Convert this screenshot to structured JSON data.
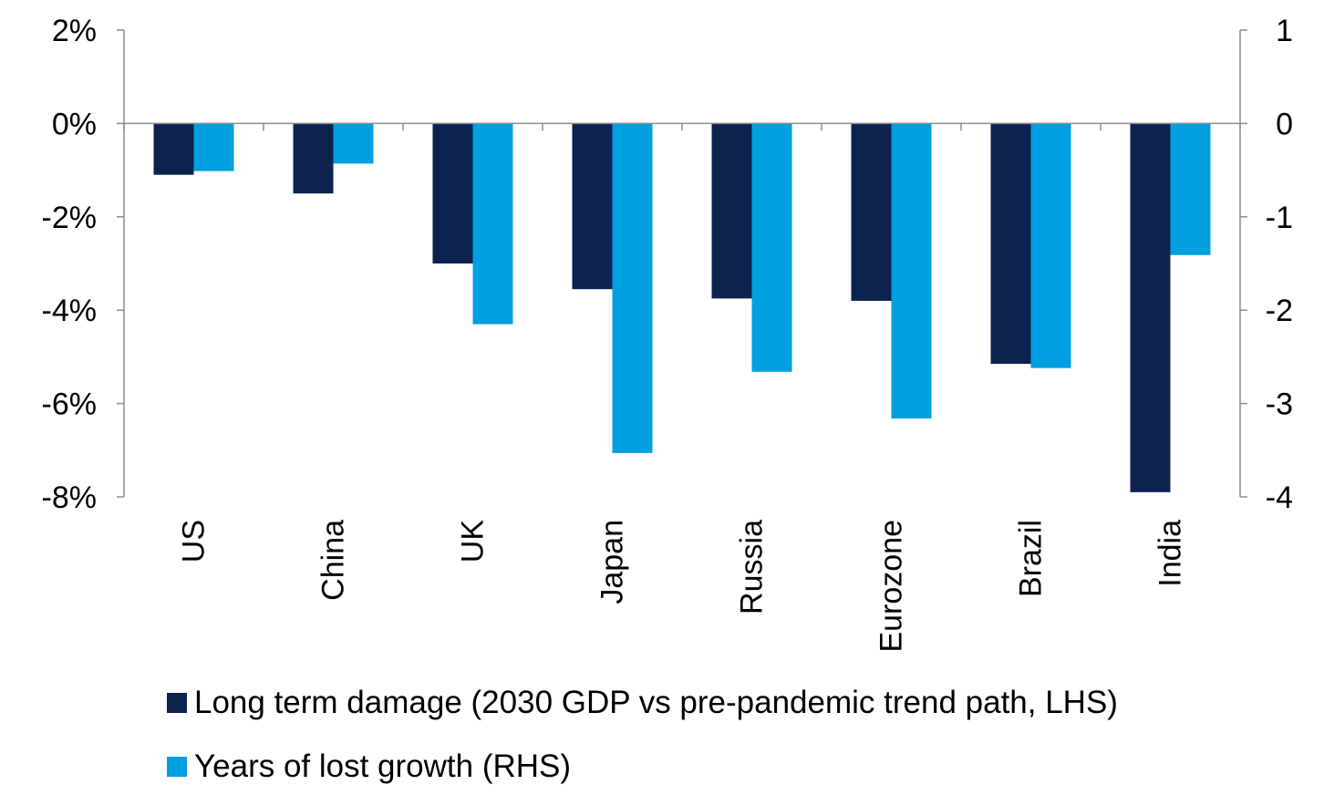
{
  "chart_data": {
    "type": "bar",
    "categories": [
      "US",
      "China",
      "UK",
      "Japan",
      "Russia",
      "Eurozone",
      "Brazil",
      "India"
    ],
    "series": [
      {
        "name": "Long term damage (2030 GDP vs pre-pandemic trend path, LHS)",
        "axis": "left",
        "color": "#0c2350",
        "values": [
          -1.1,
          -1.5,
          -3.0,
          -3.55,
          -3.75,
          -3.8,
          -5.15,
          -7.9
        ]
      },
      {
        "name": "Years of lost growth (RHS)",
        "axis": "right",
        "color": "#009fdf",
        "values": [
          -0.51,
          -0.43,
          -2.15,
          -3.53,
          -2.66,
          -3.16,
          -2.62,
          -1.41
        ]
      }
    ],
    "y_left": {
      "lim": [
        -8,
        2
      ],
      "ticks": [
        2,
        0,
        -2,
        -4,
        -6,
        -8
      ],
      "tick_labels": [
        "2%",
        "0%",
        "-2%",
        "-4%",
        "-6%",
        "-8%"
      ]
    },
    "y_right": {
      "lim": [
        -4,
        1
      ],
      "ticks": [
        1,
        0,
        -1,
        -2,
        -3,
        -4
      ],
      "tick_labels": [
        "1",
        "0",
        "-1",
        "-2",
        "-3",
        "-4"
      ]
    },
    "title": "",
    "xlabel": "",
    "grid": false,
    "legend_position": "bottom-left"
  }
}
